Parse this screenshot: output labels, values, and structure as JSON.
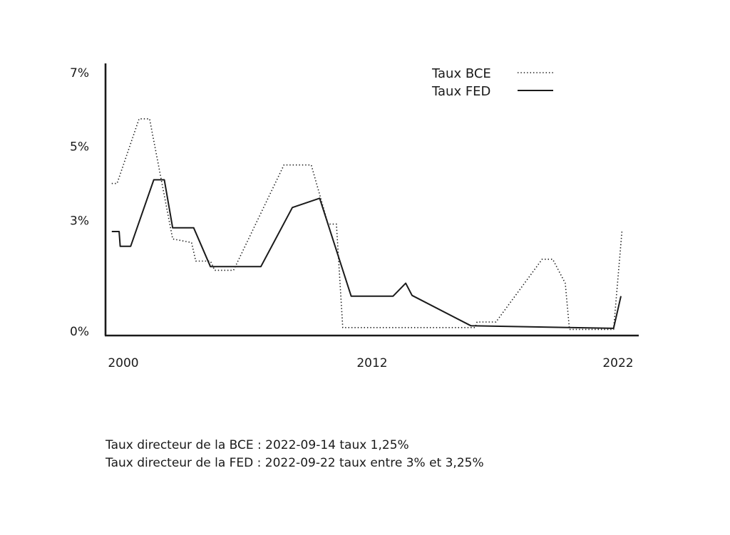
{
  "chart_data": {
    "type": "line",
    "x_unit": "year",
    "xlim": [
      1999.2,
      2024.6
    ],
    "ylim": [
      0,
      7
    ],
    "x_ticks": [
      {
        "value": 2000,
        "label": "2000"
      },
      {
        "value": 2012,
        "label": "2012"
      },
      {
        "value": 2022,
        "label": "2022"
      }
    ],
    "y_ticks": [
      {
        "value": 0,
        "label": "0%"
      },
      {
        "value": 3,
        "label": "3%"
      },
      {
        "value": 5,
        "label": "5%"
      },
      {
        "value": 7,
        "label": "7%"
      }
    ],
    "grid": false,
    "legend_position": "top-right",
    "series": [
      {
        "name": "Taux BCE",
        "style": "dotted",
        "color": "#1a1a1a",
        "points": [
          [
            1999.5,
            4.0
          ],
          [
            1999.75,
            4.0
          ],
          [
            2000.8,
            5.75
          ],
          [
            2001.3,
            5.75
          ],
          [
            2002.4,
            2.5
          ],
          [
            2003.3,
            2.4
          ],
          [
            2003.5,
            1.9
          ],
          [
            2004.2,
            1.9
          ],
          [
            2004.4,
            1.65
          ],
          [
            2005.3,
            1.65
          ],
          [
            2007.7,
            4.5
          ],
          [
            2009.0,
            4.5
          ],
          [
            2009.8,
            2.9
          ],
          [
            2010.2,
            2.9
          ],
          [
            2010.5,
            0.1
          ],
          [
            2016.8,
            0.1
          ],
          [
            2016.9,
            0.25
          ],
          [
            2017.8,
            0.25
          ],
          [
            2020.0,
            1.95
          ],
          [
            2020.5,
            1.95
          ],
          [
            2021.1,
            1.3
          ],
          [
            2021.3,
            0.05
          ],
          [
            2023.4,
            0.05
          ],
          [
            2023.8,
            2.7
          ]
        ]
      },
      {
        "name": "Taux FED",
        "style": "solid",
        "color": "#1a1a1a",
        "points": [
          [
            1999.5,
            2.7
          ],
          [
            1999.85,
            2.7
          ],
          [
            1999.9,
            2.3
          ],
          [
            2000.4,
            2.3
          ],
          [
            2001.5,
            4.1
          ],
          [
            2002.0,
            4.1
          ],
          [
            2002.4,
            2.8
          ],
          [
            2003.4,
            2.8
          ],
          [
            2004.2,
            1.75
          ],
          [
            2006.6,
            1.75
          ],
          [
            2008.1,
            3.35
          ],
          [
            2009.4,
            3.6
          ],
          [
            2010.9,
            0.95
          ],
          [
            2012.9,
            0.95
          ],
          [
            2013.5,
            1.3
          ],
          [
            2013.8,
            0.97
          ],
          [
            2016.6,
            0.15
          ],
          [
            2023.4,
            0.08
          ],
          [
            2023.75,
            0.95
          ]
        ]
      }
    ]
  },
  "legend": {
    "bce_label": "Taux BCE",
    "fed_label": "Taux FED"
  },
  "footnote": {
    "line1": "Taux directeur de la BCE : 2022-09-14 taux 1,25%",
    "line2": "Taux directeur de la FED : 2022-09-22 taux entre 3% et 3,25%"
  }
}
